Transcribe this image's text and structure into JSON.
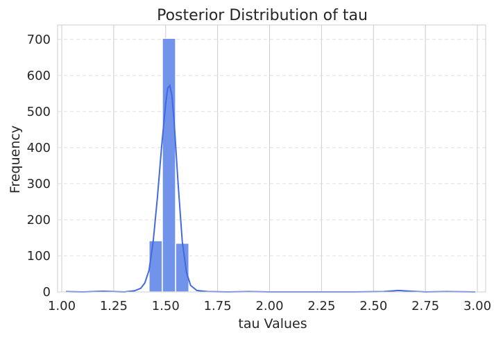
{
  "chart_data": {
    "type": "bar",
    "title": "Posterior Distribution of tau",
    "xlabel": "tau Values",
    "ylabel": "Frequency",
    "xlim": [
      0.98,
      3.04
    ],
    "ylim": [
      0,
      740
    ],
    "x_ticks": [
      1.0,
      1.25,
      1.5,
      1.75,
      2.0,
      2.25,
      2.5,
      2.75,
      3.0
    ],
    "x_tick_labels": [
      "1.00",
      "1.25",
      "1.50",
      "1.75",
      "2.00",
      "2.25",
      "2.50",
      "2.75",
      "3.00"
    ],
    "y_ticks": [
      0,
      100,
      200,
      300,
      400,
      500,
      600,
      700
    ],
    "y_tick_labels": [
      "0",
      "100",
      "200",
      "300",
      "400",
      "500",
      "600",
      "700"
    ],
    "grid": true,
    "histogram": {
      "bin_edges": [
        1.42,
        1.484,
        1.548,
        1.612
      ],
      "counts": [
        142,
        703,
        135
      ]
    },
    "kde": {
      "x": [
        1.02,
        1.1,
        1.2,
        1.3,
        1.35,
        1.38,
        1.4,
        1.42,
        1.44,
        1.46,
        1.48,
        1.5,
        1.51,
        1.52,
        1.53,
        1.54,
        1.56,
        1.58,
        1.6,
        1.62,
        1.65,
        1.7,
        1.8,
        1.9,
        2.0,
        2.2,
        2.4,
        2.55,
        2.62,
        2.68,
        2.75,
        2.85,
        2.99
      ],
      "y": [
        1,
        0,
        2,
        0,
        3,
        10,
        25,
        60,
        140,
        260,
        400,
        520,
        565,
        572,
        545,
        480,
        300,
        140,
        55,
        18,
        4,
        1,
        0,
        1,
        0,
        0,
        0,
        1,
        4,
        2,
        0,
        1,
        0
      ]
    },
    "colors": {
      "bar_fill": "#7193ea",
      "bar_edge": "#ffffff",
      "kde_line": "#4169e1",
      "grid": "#dddddd",
      "axes_edge": "#cccccc"
    }
  }
}
